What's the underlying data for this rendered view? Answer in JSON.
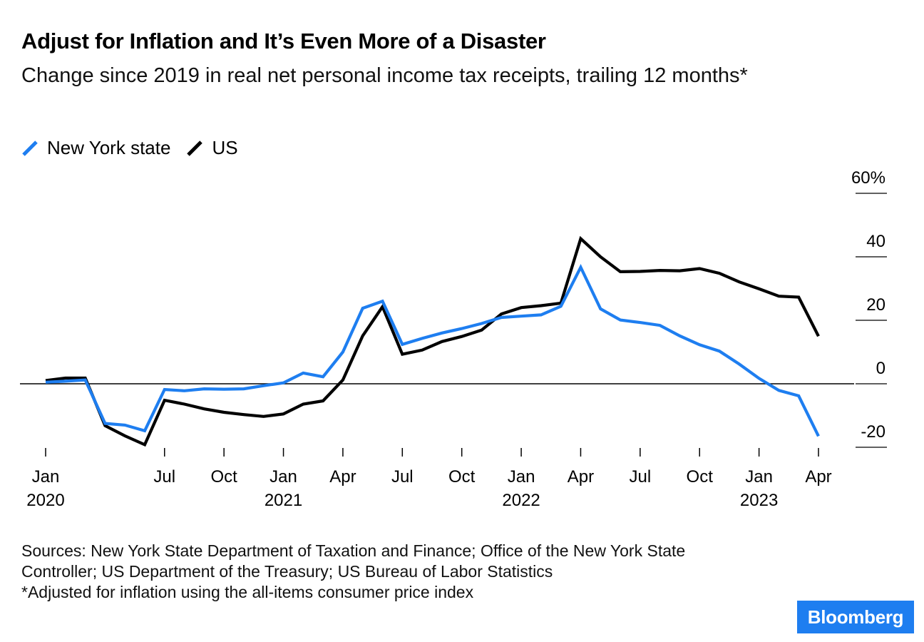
{
  "header": {
    "title": "Adjust for Inflation and It’s Even More of a Disaster",
    "subtitle": "Change since 2019 in real net personal income tax receipts, trailing 12 months*"
  },
  "legend": [
    {
      "name": "New York state",
      "color": "#1e7ef0"
    },
    {
      "name": "US",
      "color": "#000000"
    }
  ],
  "chart_data": {
    "type": "line",
    "title": "Adjust for Inflation and It’s Even More of a Disaster",
    "subtitle": "Change since 2019 in real net personal income tax receipts, trailing 12 months*",
    "xlabel": "",
    "ylabel": "",
    "ylim": [
      -20,
      60
    ],
    "y_ticks": [
      {
        "value": 60,
        "label": "60%"
      },
      {
        "value": 40,
        "label": "40"
      },
      {
        "value": 20,
        "label": "20"
      },
      {
        "value": 0,
        "label": "0"
      },
      {
        "value": -20,
        "label": "-20"
      }
    ],
    "x_ticks": [
      {
        "date": "2020-01",
        "label": "Jan",
        "year": "2020"
      },
      {
        "date": "2020-07",
        "label": "Jul",
        "year": ""
      },
      {
        "date": "2020-10",
        "label": "Oct",
        "year": ""
      },
      {
        "date": "2021-01",
        "label": "Jan",
        "year": "2021"
      },
      {
        "date": "2021-04",
        "label": "Apr",
        "year": ""
      },
      {
        "date": "2021-07",
        "label": "Jul",
        "year": ""
      },
      {
        "date": "2021-10",
        "label": "Oct",
        "year": ""
      },
      {
        "date": "2022-01",
        "label": "Jan",
        "year": "2022"
      },
      {
        "date": "2022-04",
        "label": "Apr",
        "year": ""
      },
      {
        "date": "2022-07",
        "label": "Jul",
        "year": ""
      },
      {
        "date": "2022-10",
        "label": "Oct",
        "year": ""
      },
      {
        "date": "2023-01",
        "label": "Jan",
        "year": "2023"
      },
      {
        "date": "2023-04",
        "label": "Apr",
        "year": ""
      }
    ],
    "x": [
      "2020-01",
      "2020-02",
      "2020-03",
      "2020-04",
      "2020-05",
      "2020-06",
      "2020-07",
      "2020-08",
      "2020-09",
      "2020-10",
      "2020-11",
      "2020-12",
      "2021-01",
      "2021-02",
      "2021-03",
      "2021-04",
      "2021-05",
      "2021-06",
      "2021-07",
      "2021-08",
      "2021-09",
      "2021-10",
      "2021-11",
      "2021-12",
      "2022-01",
      "2022-02",
      "2022-03",
      "2022-04",
      "2022-05",
      "2022-06",
      "2022-07",
      "2022-08",
      "2022-09",
      "2022-10",
      "2022-11",
      "2022-12",
      "2023-01",
      "2023-02",
      "2023-03",
      "2023-04"
    ],
    "grid": false,
    "legend_position": "top-left",
    "series": [
      {
        "name": "New York state",
        "color": "#1e7ef0",
        "values": [
          0.5,
          0.8,
          1.2,
          -12.5,
          -13.0,
          -14.8,
          -1.8,
          -2.2,
          -1.6,
          -1.7,
          -1.6,
          -0.6,
          0.3,
          3.4,
          2.2,
          10.0,
          23.8,
          26.0,
          12.4,
          14.3,
          16.0,
          17.4,
          19.0,
          20.9,
          21.3,
          21.7,
          24.4,
          36.7,
          23.6,
          20.1,
          19.3,
          18.4,
          15.1,
          12.3,
          10.3,
          6.2,
          1.7,
          -2.1,
          -3.8,
          -16.5
        ]
      },
      {
        "name": "US",
        "color": "#000000",
        "values": [
          1.0,
          1.8,
          1.8,
          -13.2,
          -16.4,
          -19.2,
          -5.2,
          -6.4,
          -7.9,
          -9.0,
          -9.7,
          -10.3,
          -9.5,
          -6.4,
          -5.4,
          1.2,
          15.1,
          24.3,
          9.3,
          10.6,
          13.3,
          14.9,
          16.9,
          22.0,
          24.0,
          24.6,
          25.4,
          45.7,
          40.0,
          35.3,
          35.4,
          35.7,
          35.6,
          36.3,
          34.8,
          32.1,
          29.9,
          27.6,
          27.3,
          15.0
        ]
      }
    ]
  },
  "footer": {
    "sources": "Sources: New York State Department of Taxation and Finance; Office of the New York State Controller; US Department of the Treasury; US Bureau of Labor Statistics",
    "note": "*Adjusted for inflation using the all-items consumer price index"
  },
  "brand": {
    "name": "Bloomberg",
    "color": "#1e7ef0"
  }
}
